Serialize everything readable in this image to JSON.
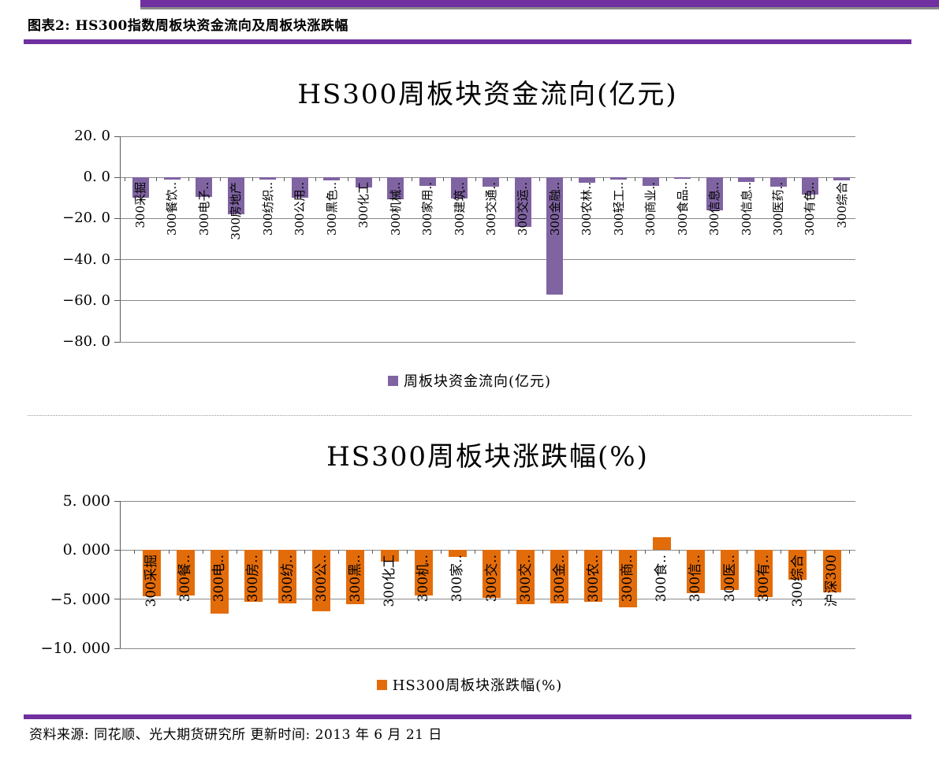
{
  "page": {
    "header": {
      "title": "图表2: HS300指数周板块资金流向及周板块涨跌幅"
    },
    "footer": {
      "source": "资料来源: 同花顺、光大期货研究所 更新时间: 2013 年 6 月 21 日"
    }
  },
  "colors": {
    "rule_purple": "#7030A0",
    "band_shadow": "#8a8a8a",
    "purple_bar": "#8064A2",
    "orange_bar": "#E36C0A"
  },
  "chart_data": [
    {
      "type": "bar",
      "title": "HS300周板块资金流向(亿元)",
      "legend": "周板块资金流向(亿元)",
      "legend_position": "bottom",
      "bar_color": "#8064A2",
      "grid": true,
      "ylim": [
        -80,
        20
      ],
      "yticks": [
        20,
        0,
        -20,
        -40,
        -60,
        -80
      ],
      "ytick_labels": [
        "20. 0",
        "0. 0",
        "−20. 0",
        "−40. 0",
        "−60. 0",
        "−80. 0"
      ],
      "categories": [
        "300采掘",
        "300餐饮..",
        "300电子..",
        "300房地产",
        "300纺织..",
        "300公用..",
        "300黑色..",
        "300化工",
        "300机械..",
        "300家用..",
        "300建筑..",
        "300交通..",
        "300交运..",
        "300金融..",
        "300农林..",
        "300轻工..",
        "300商业..",
        "300食品..",
        "300信息..",
        "300信息..",
        "300医药..",
        "300有色..",
        "300综合"
      ],
      "values": [
        -9.8,
        -1.0,
        -9.5,
        -18.0,
        -1.0,
        -9.8,
        -1.6,
        -5.0,
        -10.5,
        -4.2,
        -10.3,
        -4.7,
        -24.0,
        -57.0,
        -2.5,
        -1.0,
        -4.2,
        -0.7,
        -16.0,
        -2.4,
        -4.5,
        -8.5,
        -1.3
      ]
    },
    {
      "type": "bar",
      "title": "HS300周板块涨跌幅(%)",
      "legend": "HS300周板块涨跌幅(%)",
      "legend_position": "bottom",
      "bar_color": "#E36C0A",
      "grid": true,
      "ylim": [
        -10,
        5
      ],
      "yticks": [
        5,
        0,
        -5,
        -10
      ],
      "ytick_labels": [
        "5. 000",
        "0. 000",
        "−5. 000",
        "−10. 000"
      ],
      "categories": [
        "300采掘",
        "300餐..",
        "300电..",
        "300房..",
        "300纺..",
        "300公..",
        "300黑..",
        "300化工",
        "300机..",
        "300家..",
        "300交..",
        "300交..",
        "300金..",
        "300农..",
        "300商..",
        "300食..",
        "300信..",
        "300医..",
        "300有..",
        "300综合",
        "沪深300"
      ],
      "values": [
        -4.7,
        -4.6,
        -6.5,
        -5.3,
        -5.4,
        -6.2,
        -5.5,
        -1.2,
        -4.6,
        -0.7,
        -4.9,
        -5.5,
        -5.4,
        -5.3,
        -5.8,
        1.3,
        -4.4,
        -4.1,
        -4.8,
        -3.0,
        -4.3
      ]
    }
  ]
}
